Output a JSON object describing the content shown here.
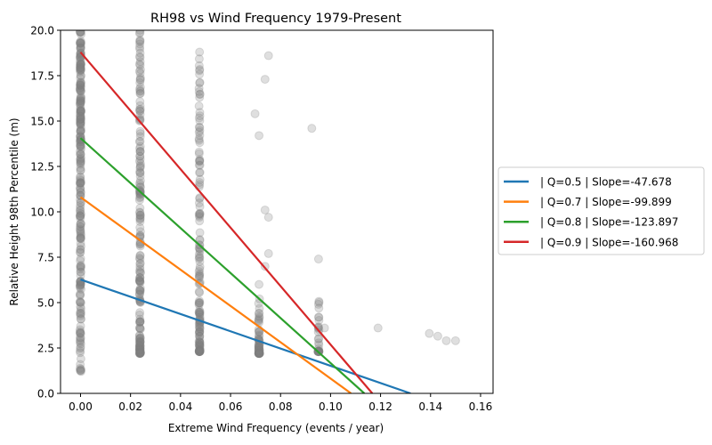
{
  "chart_data": {
    "type": "scatter",
    "title": "RH98 vs Wind Frequency 1979-Present",
    "xlabel": "Extreme Wind Frequency (events / year)",
    "ylabel": "Relative Height 98th Percentile (m)",
    "xlim": [
      -0.008,
      0.165
    ],
    "ylim": [
      0,
      20
    ],
    "xticks": [
      0.0,
      0.02,
      0.04,
      0.06,
      0.08,
      0.1,
      0.12,
      0.14,
      0.16
    ],
    "xtick_labels": [
      "0.00",
      "0.02",
      "0.04",
      "0.06",
      "0.08",
      "0.10",
      "0.12",
      "0.14",
      "0.16"
    ],
    "yticks": [
      0,
      2.5,
      5,
      7.5,
      10,
      12.5,
      15,
      17.5,
      20
    ],
    "ytick_labels": [
      "0.0",
      "2.5",
      "5.0",
      "7.5",
      "10.0",
      "12.5",
      "15.0",
      "17.5",
      "20.0"
    ],
    "grid": false,
    "legend_position": "center-right outside",
    "scatter_color": "#808080",
    "scatter_columns": [
      {
        "x": 0.0,
        "y_min": 1.2,
        "y_max": 20.0
      },
      {
        "x": 0.0238,
        "y_min": 2.2,
        "y_max": 20.0
      },
      {
        "x": 0.0476,
        "y_min": 2.3,
        "y_max": 18.8
      },
      {
        "x": 0.0714,
        "y_min": 2.2,
        "y_max": 15.4
      },
      {
        "x": 0.0952,
        "y_min": 2.3,
        "y_max": 14.6
      }
    ],
    "scatter_outliers": [
      {
        "x": 0.0,
        "y": 1.25
      },
      {
        "x": 0.0238,
        "y": 20.0
      },
      {
        "x": 0.0476,
        "y": 18.8
      },
      {
        "x": 0.0476,
        "y": 17.1
      },
      {
        "x": 0.0476,
        "y": 16.3
      },
      {
        "x": 0.0698,
        "y": 15.4
      },
      {
        "x": 0.0714,
        "y": 14.2
      },
      {
        "x": 0.0738,
        "y": 17.3
      },
      {
        "x": 0.0752,
        "y": 18.6
      },
      {
        "x": 0.0738,
        "y": 10.1
      },
      {
        "x": 0.0752,
        "y": 9.7
      },
      {
        "x": 0.0738,
        "y": 7.0
      },
      {
        "x": 0.0752,
        "y": 7.7
      },
      {
        "x": 0.0714,
        "y": 6.0
      },
      {
        "x": 0.0925,
        "y": 14.6
      },
      {
        "x": 0.0952,
        "y": 7.4
      },
      {
        "x": 0.0952,
        "y": 4.2
      },
      {
        "x": 0.0976,
        "y": 3.6
      },
      {
        "x": 0.119,
        "y": 3.6
      },
      {
        "x": 0.1395,
        "y": 3.3
      },
      {
        "x": 0.1429,
        "y": 3.15
      },
      {
        "x": 0.1463,
        "y": 2.9
      },
      {
        "x": 0.15,
        "y": 2.9
      }
    ],
    "series": [
      {
        "name": "| Q=0.5 | Slope=-47.678",
        "color": "#1f77b4",
        "x": [
          0.0,
          0.132
        ],
        "y": [
          6.27,
          0.0
        ]
      },
      {
        "name": "| Q=0.7 | Slope=-99.899",
        "color": "#ff7f0e",
        "x": [
          0.0,
          0.1082
        ],
        "y": [
          10.81,
          0.0
        ]
      },
      {
        "name": "| Q=0.8 | Slope=-123.897",
        "color": "#2ca02c",
        "x": [
          0.0,
          0.1135
        ],
        "y": [
          14.06,
          0.0
        ]
      },
      {
        "name": "| Q=0.9 | Slope=-160.968",
        "color": "#d62728",
        "x": [
          0.0,
          0.1167
        ],
        "y": [
          18.79,
          0.0
        ]
      }
    ]
  }
}
